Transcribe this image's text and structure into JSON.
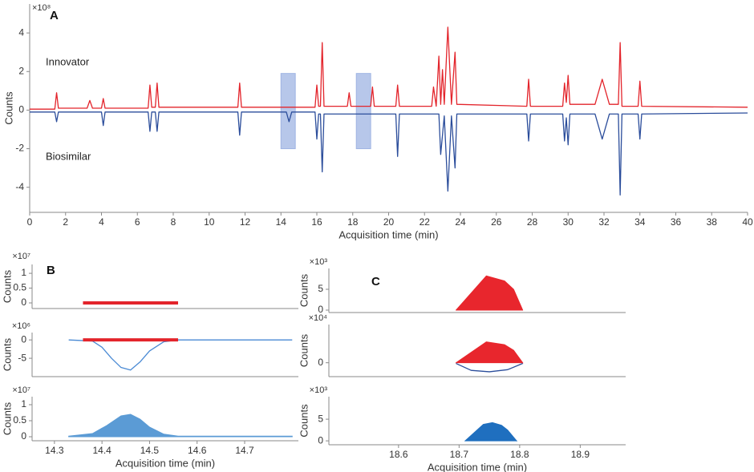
{
  "chart_data": [
    {
      "type": "line",
      "label": "A",
      "x_label": "Acquisition time (min)",
      "y_label": "Counts",
      "y_multiplier": "×10⁸",
      "xlim": [
        0,
        40
      ],
      "xticks": [
        0,
        2,
        4,
        6,
        8,
        10,
        12,
        14,
        16,
        18,
        20,
        22,
        24,
        26,
        28,
        30,
        32,
        34,
        36,
        38,
        40
      ],
      "ylim": [
        -5.3,
        5.5
      ],
      "yticks": [
        -4,
        -2,
        0,
        2,
        4
      ],
      "highlight_color": "#9fb4e3",
      "highlights": [
        {
          "x": [
            14,
            14.8
          ],
          "y": [
            -2,
            1.9
          ]
        },
        {
          "x": [
            18.2,
            19
          ],
          "y": [
            -2,
            1.9
          ]
        }
      ],
      "series": [
        {
          "name": "Innovator",
          "color": "#e3242b",
          "style": "line",
          "x": [
            0,
            1.4,
            1.5,
            1.6,
            3.2,
            3.35,
            3.5,
            4.0,
            4.1,
            4.2,
            6.6,
            6.7,
            6.8,
            7.0,
            7.1,
            7.2,
            11.6,
            11.7,
            11.8,
            15.9,
            16.0,
            16.1,
            16.2,
            16.3,
            16.4,
            17.7,
            17.8,
            17.9,
            19.0,
            19.1,
            19.2,
            20.4,
            20.5,
            20.6,
            22.4,
            22.5,
            22.65,
            22.8,
            22.9,
            23.0,
            23.1,
            23.3,
            23.5,
            23.7,
            23.8,
            27.7,
            27.8,
            27.9,
            29.7,
            29.8,
            29.9,
            30.0,
            30.1,
            31.5,
            31.9,
            32.3,
            32.8,
            32.9,
            33.0,
            33.9,
            34.0,
            34.1,
            40
          ],
          "values": [
            0.05,
            0.05,
            0.9,
            0.1,
            0.1,
            0.5,
            0.1,
            0.1,
            0.6,
            0.1,
            0.1,
            1.3,
            0.15,
            0.15,
            1.4,
            0.15,
            0.15,
            1.4,
            0.15,
            0.15,
            1.3,
            0.2,
            0.2,
            3.5,
            0.2,
            0.2,
            0.9,
            0.2,
            0.2,
            1.2,
            0.2,
            0.2,
            1.3,
            0.2,
            0.2,
            1.2,
            0.2,
            2.8,
            0.3,
            2.1,
            0.3,
            4.3,
            0.3,
            3.0,
            0.3,
            0.2,
            1.6,
            0.2,
            0.2,
            1.4,
            0.4,
            1.8,
            0.3,
            0.3,
            1.6,
            0.3,
            0.3,
            3.5,
            0.2,
            0.2,
            1.5,
            0.2,
            0.15
          ]
        },
        {
          "name": "Biosimilar",
          "color": "#2b4d9b",
          "style": "line",
          "x": [
            0,
            1.4,
            1.5,
            1.6,
            4.0,
            4.1,
            4.2,
            6.6,
            6.7,
            6.8,
            7.0,
            7.1,
            7.2,
            11.6,
            11.7,
            11.8,
            14.3,
            14.45,
            14.6,
            15.9,
            16.0,
            16.1,
            16.2,
            16.3,
            16.4,
            20.4,
            20.5,
            20.6,
            22.8,
            22.9,
            23.1,
            23.3,
            23.5,
            23.7,
            23.8,
            27.7,
            27.8,
            27.9,
            29.7,
            29.8,
            29.9,
            30.0,
            30.1,
            31.5,
            31.9,
            32.3,
            32.8,
            32.9,
            33.0,
            33.9,
            34.0,
            34.1,
            40
          ],
          "values": [
            -0.1,
            -0.1,
            -0.6,
            -0.1,
            -0.1,
            -0.8,
            -0.1,
            -0.1,
            -1.1,
            -0.1,
            -0.1,
            -1.1,
            -0.1,
            -0.1,
            -1.3,
            -0.1,
            -0.1,
            -0.6,
            -0.1,
            -0.1,
            -1.5,
            -0.2,
            -0.2,
            -3.2,
            -0.2,
            -0.2,
            -2.4,
            -0.2,
            -0.2,
            -2.3,
            -0.3,
            -4.2,
            -0.3,
            -3.0,
            -0.2,
            -0.2,
            -1.6,
            -0.2,
            -0.2,
            -1.6,
            -0.4,
            -1.8,
            -0.2,
            -0.2,
            -1.5,
            -0.2,
            -0.2,
            -4.4,
            -0.2,
            -0.2,
            -1.5,
            -0.2,
            -0.15
          ]
        }
      ]
    },
    {
      "type": "line",
      "label": "B",
      "y_label": "Counts",
      "y_multiplier": "×10⁷",
      "xlim": [
        14.253,
        14.813
      ],
      "ylim": [
        -0.19,
        1.3
      ],
      "yticks": [
        0,
        0.5,
        1
      ],
      "series": [
        {
          "color": "#e3242b",
          "style": "band",
          "x": [
            14.36,
            14.56
          ],
          "values": [
            0,
            0
          ]
        }
      ]
    },
    {
      "type": "line",
      "y_label": "Counts",
      "y_multiplier": "×10⁶",
      "xlim": [
        14.253,
        14.813
      ],
      "ylim": [
        -10,
        2
      ],
      "yticks": [
        -5,
        0
      ],
      "series": [
        {
          "color": "#4a8ad4",
          "style": "line",
          "x": [
            14.33,
            14.38,
            14.4,
            14.42,
            14.44,
            14.46,
            14.48,
            14.5,
            14.53,
            14.56,
            14.8
          ],
          "values": [
            0,
            -0.3,
            -2,
            -5,
            -7.5,
            -8.2,
            -6,
            -3,
            -0.5,
            0,
            0
          ]
        },
        {
          "color": "#e3242b",
          "style": "band",
          "x": [
            14.36,
            14.56
          ],
          "values": [
            0,
            0
          ]
        }
      ]
    },
    {
      "type": "line",
      "x_label": "Acquisition time (min)",
      "y_label": "Counts",
      "y_multiplier": "×10⁷",
      "xlim": [
        14.253,
        14.813
      ],
      "xticks": [
        14.3,
        14.4,
        14.5,
        14.6,
        14.7
      ],
      "ylim": [
        -0.125,
        1.25
      ],
      "yticks": [
        0,
        0.5,
        1
      ],
      "series": [
        {
          "color": "#5b9bd5",
          "style": "area",
          "x": [
            14.33,
            14.38,
            14.41,
            14.44,
            14.46,
            14.48,
            14.5,
            14.53,
            14.56,
            14.8
          ],
          "values": [
            0.02,
            0.1,
            0.35,
            0.65,
            0.7,
            0.55,
            0.3,
            0.08,
            0.02,
            0.02
          ]
        }
      ]
    },
    {
      "type": "line",
      "label": "C",
      "y_label": "Counts",
      "y_multiplier": "×10³",
      "xlim": [
        18.485,
        18.975
      ],
      "ylim": [
        -0.58,
        10
      ],
      "yticks": [
        0,
        5
      ],
      "series": [
        {
          "color": "#e8262d",
          "style": "area",
          "x": [
            18.695,
            18.745,
            18.775,
            18.79,
            18.805
          ],
          "values": [
            0,
            8.2,
            7,
            5,
            0
          ]
        }
      ]
    },
    {
      "type": "line",
      "y_label": "Counts",
      "y_multiplier": "×10⁴",
      "xlim": [
        18.485,
        18.975
      ],
      "ylim": [
        -2,
        5.5
      ],
      "yticks": [
        0
      ],
      "series": [
        {
          "color": "#e8262d",
          "style": "area",
          "x": [
            18.695,
            18.745,
            18.775,
            18.79,
            18.805
          ],
          "values": [
            0,
            3.0,
            2.6,
            1.8,
            0
          ]
        },
        {
          "color": "#2b4d9b",
          "style": "line",
          "x": [
            18.695,
            18.72,
            18.75,
            18.78,
            18.805
          ],
          "values": [
            -0.1,
            -1.1,
            -1.3,
            -1.0,
            -0.1
          ]
        }
      ]
    },
    {
      "type": "line",
      "x_label": "Acquisition time (min)",
      "y_label": "Counts",
      "y_multiplier": "×10³",
      "xlim": [
        18.485,
        18.975
      ],
      "xticks": [
        18.6,
        18.7,
        18.8,
        18.9
      ],
      "ylim": [
        -0.9,
        10.2
      ],
      "yticks": [
        0,
        5
      ],
      "series": [
        {
          "color": "#1f6fbf",
          "style": "area",
          "x": [
            18.71,
            18.74,
            18.755,
            18.77,
            18.78,
            18.795
          ],
          "values": [
            0,
            3.8,
            4.2,
            3.6,
            2.5,
            0
          ]
        }
      ]
    }
  ]
}
